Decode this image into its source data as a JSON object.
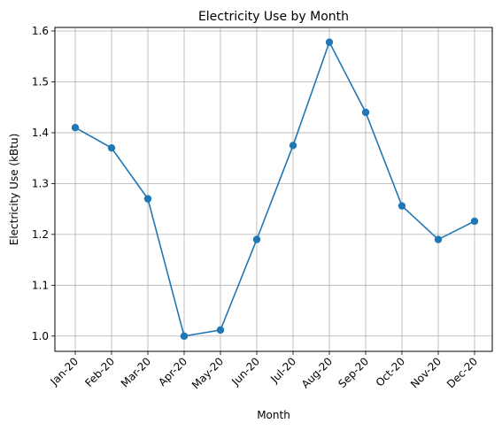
{
  "chart_data": {
    "type": "line",
    "title": "Electricity Use by Month",
    "xlabel": "Month",
    "ylabel": "Electricity Use (kBtu)",
    "categories": [
      "Jan-20",
      "Feb-20",
      "Mar-20",
      "Apr-20",
      "May-20",
      "Jun-20",
      "Jul-20",
      "Aug-20",
      "Sep-20",
      "Oct-20",
      "Nov-20",
      "Dec-20"
    ],
    "series": [
      {
        "values": [
          1.41,
          1.37,
          1.27,
          1.0,
          1.012,
          1.19,
          1.375,
          1.578,
          1.44,
          1.256,
          1.19,
          1.226
        ],
        "color": "#1f77b4",
        "marker": "circle"
      }
    ],
    "ylim": [
      0.97,
      1.607
    ],
    "yticks": [
      "1.0",
      "1.1",
      "1.2",
      "1.3",
      "1.4",
      "1.5",
      "1.6"
    ],
    "x_tick_rotation": 45,
    "grid": true,
    "legend": "none"
  }
}
